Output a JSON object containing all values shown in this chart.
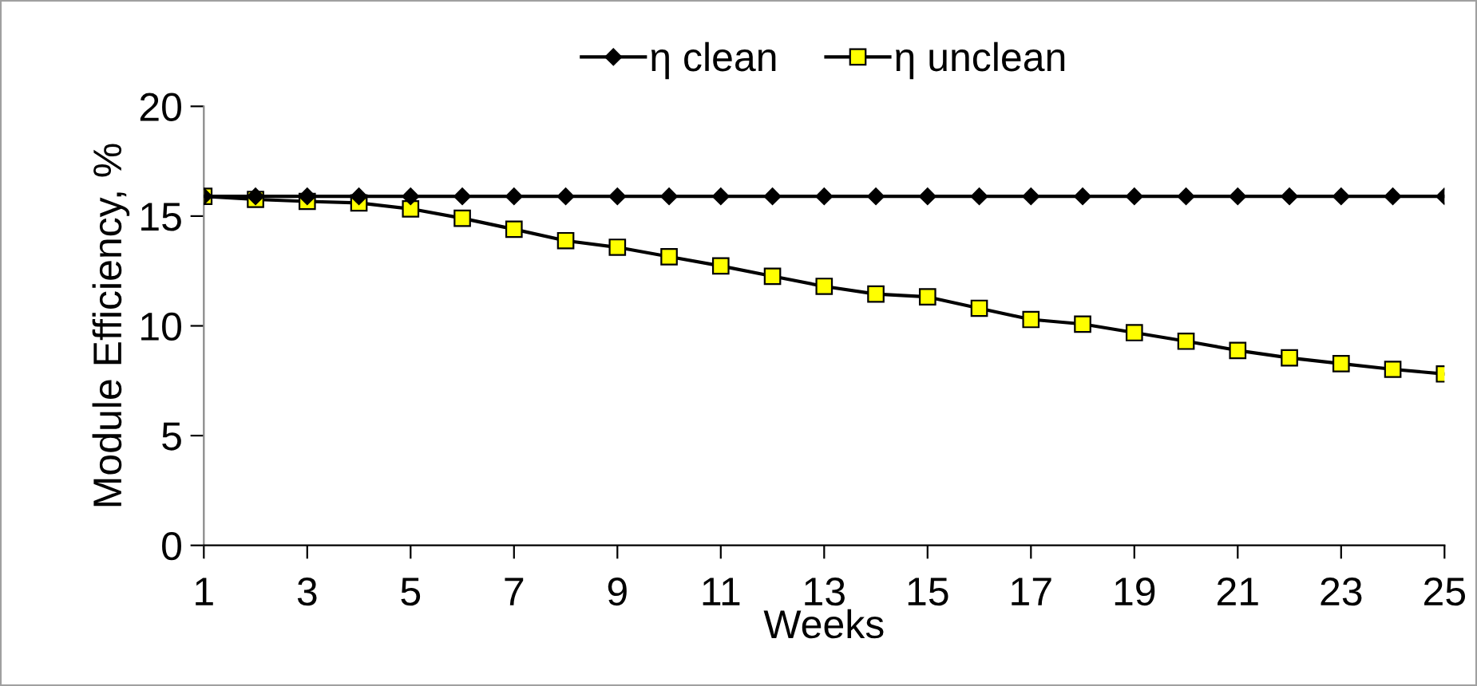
{
  "chart_data": {
    "type": "line",
    "xlabel": "Weeks",
    "ylabel": "Module Efficiency, %",
    "x": [
      1,
      2,
      3,
      4,
      5,
      6,
      7,
      8,
      9,
      10,
      11,
      12,
      13,
      14,
      15,
      16,
      17,
      18,
      19,
      20,
      21,
      22,
      23,
      24,
      25
    ],
    "xlim": [
      1,
      25
    ],
    "xticks": [
      1,
      3,
      5,
      7,
      9,
      11,
      13,
      15,
      17,
      19,
      21,
      23,
      25
    ],
    "ylim": [
      0,
      20
    ],
    "yticks": [
      0,
      5,
      10,
      15,
      20
    ],
    "grid": false,
    "legend": "top",
    "series": [
      {
        "name": "η clean",
        "color": "#000000",
        "marker": "diamond",
        "values": [
          15.9,
          15.9,
          15.9,
          15.9,
          15.9,
          15.9,
          15.9,
          15.9,
          15.9,
          15.9,
          15.9,
          15.9,
          15.9,
          15.9,
          15.9,
          15.9,
          15.9,
          15.9,
          15.9,
          15.9,
          15.9,
          15.9,
          15.9,
          15.9,
          15.9
        ]
      },
      {
        "name": "η unclean",
        "color": "#ffff00",
        "marker": "square",
        "values": [
          15.9,
          15.76,
          15.67,
          15.6,
          15.33,
          14.9,
          14.4,
          13.88,
          13.58,
          13.15,
          12.73,
          12.26,
          11.8,
          11.45,
          11.32,
          10.8,
          10.29,
          10.08,
          9.69,
          9.3,
          8.88,
          8.54,
          8.28,
          8.02,
          7.81
        ]
      }
    ]
  }
}
